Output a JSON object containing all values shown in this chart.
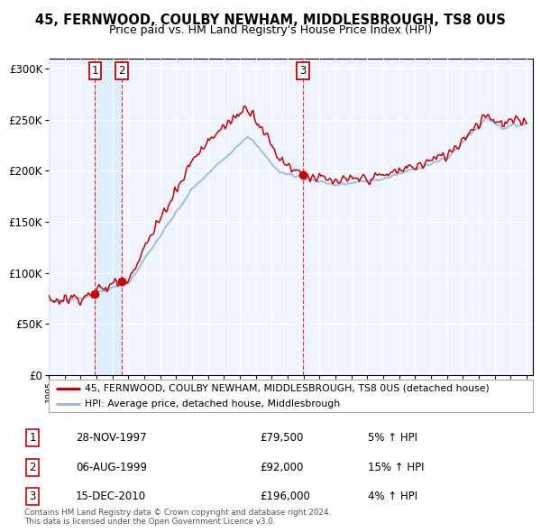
{
  "title": "45, FERNWOOD, COULBY NEWHAM, MIDDLESBROUGH, TS8 0US",
  "subtitle": "Price paid vs. HM Land Registry's House Price Index (HPI)",
  "ylim": [
    0,
    310000
  ],
  "yticks": [
    0,
    50000,
    100000,
    150000,
    200000,
    250000,
    300000
  ],
  "legend_property_label": "45, FERNWOOD, COULBY NEWHAM, MIDDLESBROUGH, TS8 0US (detached house)",
  "legend_hpi_label": "HPI: Average price, detached house, Middlesbrough",
  "sale1_date": 1997.9,
  "sale1_price": 79500,
  "sale2_date": 1999.59,
  "sale2_price": 92000,
  "sale3_date": 2010.96,
  "sale3_price": 196000,
  "transaction_table": [
    {
      "num": "1",
      "date": "28-NOV-1997",
      "price": "£79,500",
      "change": "5% ↑ HPI"
    },
    {
      "num": "2",
      "date": "06-AUG-1999",
      "price": "£92,000",
      "change": "15% ↑ HPI"
    },
    {
      "num": "3",
      "date": "15-DEC-2010",
      "price": "£196,000",
      "change": "4% ↑ HPI"
    }
  ],
  "footer_text": "Contains HM Land Registry data © Crown copyright and database right 2024.\nThis data is licensed under the Open Government Licence v3.0.",
  "property_color": "#cc0000",
  "hpi_color": "#99bbdd",
  "shade_color": "#ddeeff",
  "background_color": "#ffffff",
  "plot_bg_color": "#f0f4ff"
}
